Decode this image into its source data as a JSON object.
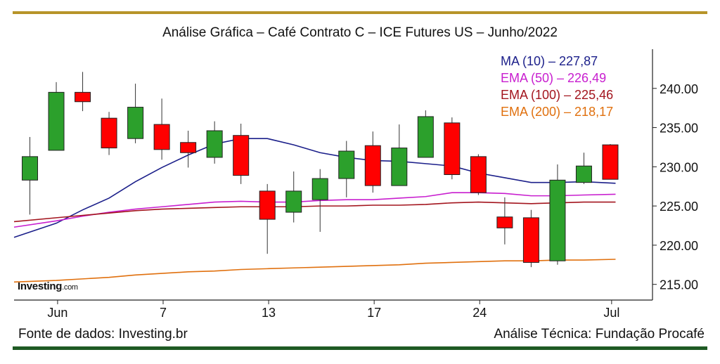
{
  "header": {
    "title": "Análise Gráfica – Café Contrato C – ICE Futures US – Junho/2022"
  },
  "footer": {
    "source": "Fonte de dados: Investing.br",
    "analysis": "Análise Técnica: Fundação Procafé"
  },
  "logo": {
    "main": "Investing",
    "suffix": ".com"
  },
  "colors": {
    "gold_rule": "#b79429",
    "green_rule": "#1f5a24",
    "up_candle": "#2ca02c",
    "down_candle": "#ff0000"
  },
  "chart_data": {
    "type": "candlestick",
    "title": "Análise Gráfica – Café Contrato C – ICE Futures US – Junho/2022",
    "ylim": [
      213,
      245
    ],
    "y_ticks": [
      215,
      220,
      225,
      230,
      235,
      240
    ],
    "y_tick_labels": [
      "215.00",
      "220.00",
      "225.00",
      "230.00",
      "235.00",
      "240.00"
    ],
    "x_tick_labels": [
      {
        "label": "Jun",
        "index": 2
      },
      {
        "label": "7",
        "index": 6
      },
      {
        "label": "13",
        "index": 10
      },
      {
        "label": "17",
        "index": 14
      },
      {
        "label": "24",
        "index": 18
      },
      {
        "label": "Jul",
        "index": 23
      }
    ],
    "candles": [
      {
        "open": 228.3,
        "close": 231.3,
        "high": 233.8,
        "low": 223.9
      },
      {
        "open": 232.1,
        "close": 239.5,
        "high": 240.8,
        "low": 232.1
      },
      {
        "open": 239.5,
        "close": 238.3,
        "high": 242.1,
        "low": 237.1
      },
      {
        "open": 236.2,
        "close": 232.4,
        "high": 237.0,
        "low": 231.5
      },
      {
        "open": 233.6,
        "close": 237.6,
        "high": 240.6,
        "low": 233.0
      },
      {
        "open": 235.4,
        "close": 232.2,
        "high": 238.7,
        "low": 230.9
      },
      {
        "open": 233.1,
        "close": 231.8,
        "high": 234.6,
        "low": 229.9
      },
      {
        "open": 231.2,
        "close": 234.6,
        "high": 235.8,
        "low": 230.4
      },
      {
        "open": 234.0,
        "close": 228.9,
        "high": 235.5,
        "low": 227.8
      },
      {
        "open": 226.9,
        "close": 223.3,
        "high": 227.8,
        "low": 218.9
      },
      {
        "open": 224.2,
        "close": 226.9,
        "high": 229.4,
        "low": 222.9
      },
      {
        "open": 225.8,
        "close": 228.5,
        "high": 229.7,
        "low": 221.7
      },
      {
        "open": 228.5,
        "close": 232.0,
        "high": 233.3,
        "low": 226.1
      },
      {
        "open": 232.7,
        "close": 227.6,
        "high": 234.5,
        "low": 226.7
      },
      {
        "open": 227.6,
        "close": 232.4,
        "high": 235.4,
        "low": 227.6
      },
      {
        "open": 231.2,
        "close": 236.4,
        "high": 237.2,
        "low": 231.2
      },
      {
        "open": 235.6,
        "close": 229.0,
        "high": 236.3,
        "low": 228.4
      },
      {
        "open": 231.3,
        "close": 226.7,
        "high": 231.6,
        "low": 226.4
      },
      {
        "open": 223.6,
        "close": 222.2,
        "high": 226.1,
        "low": 220.1
      },
      {
        "open": 223.5,
        "close": 217.8,
        "high": 224.5,
        "low": 217.2
      },
      {
        "open": 218.0,
        "close": 228.3,
        "high": 230.3,
        "low": 217.5
      },
      {
        "open": 228.0,
        "close": 230.1,
        "high": 231.8,
        "low": 227.8
      },
      {
        "open": 232.8,
        "close": 228.4,
        "high": 232.9,
        "low": 228.4
      }
    ],
    "candle_x": [
      0,
      1,
      2,
      3,
      4,
      5,
      6,
      7,
      8,
      9,
      10,
      11,
      12,
      13,
      14,
      15,
      16,
      17,
      18,
      19,
      20,
      21,
      22
    ],
    "x_range": [
      -0.6,
      23.6
    ],
    "series": [
      {
        "name": "MA (10) – 227,87",
        "color": "#1b1f8a",
        "x": [
          -0.6,
          1,
          2,
          3,
          4,
          5,
          6,
          7,
          8,
          9,
          10,
          11,
          12,
          13,
          14,
          15,
          16,
          17,
          18,
          19,
          20,
          21,
          22.2
        ],
        "values": [
          221.0,
          222.8,
          224.5,
          226.0,
          228.1,
          229.9,
          231.5,
          232.9,
          233.6,
          233.6,
          232.8,
          231.8,
          231.2,
          230.8,
          230.7,
          230.4,
          230.1,
          229.2,
          228.6,
          228.0,
          228.0,
          228.1,
          227.9
        ]
      },
      {
        "name": "EMA (50) – 226,49",
        "color": "#c81ecf",
        "x": [
          -0.6,
          1,
          2,
          3,
          4,
          5,
          6,
          7,
          8,
          9,
          10,
          11,
          12,
          13,
          14,
          15,
          16,
          17,
          18,
          19,
          20,
          21,
          22.2
        ],
        "values": [
          222.3,
          223.1,
          223.7,
          224.2,
          224.6,
          224.9,
          225.2,
          225.5,
          225.6,
          225.5,
          225.5,
          225.7,
          225.8,
          225.8,
          226.0,
          226.2,
          226.7,
          226.7,
          226.6,
          226.3,
          226.3,
          226.4,
          226.5
        ]
      },
      {
        "name": "EMA (100) – 225,46",
        "color": "#a3151e",
        "x": [
          -0.6,
          1,
          2,
          3,
          4,
          5,
          6,
          7,
          8,
          9,
          10,
          11,
          12,
          13,
          14,
          15,
          16,
          17,
          18,
          19,
          20,
          21,
          22.2
        ],
        "values": [
          223.0,
          223.5,
          223.8,
          224.1,
          224.4,
          224.6,
          224.7,
          224.8,
          224.9,
          224.9,
          224.9,
          225.0,
          225.0,
          225.1,
          225.1,
          225.2,
          225.4,
          225.5,
          225.4,
          225.3,
          225.4,
          225.5,
          225.5
        ]
      },
      {
        "name": "EMA (200) – 218,17",
        "color": "#e0700e",
        "x": [
          -0.6,
          1,
          2,
          3,
          4,
          5,
          6,
          7,
          8,
          9,
          10,
          11,
          12,
          13,
          14,
          15,
          16,
          17,
          18,
          19,
          20,
          21,
          22.2
        ],
        "values": [
          215.3,
          215.5,
          215.7,
          215.9,
          216.2,
          216.4,
          216.6,
          216.7,
          216.9,
          217.0,
          217.1,
          217.2,
          217.3,
          217.4,
          217.5,
          217.7,
          217.8,
          217.9,
          218.0,
          218.0,
          218.1,
          218.1,
          218.2
        ]
      }
    ]
  }
}
